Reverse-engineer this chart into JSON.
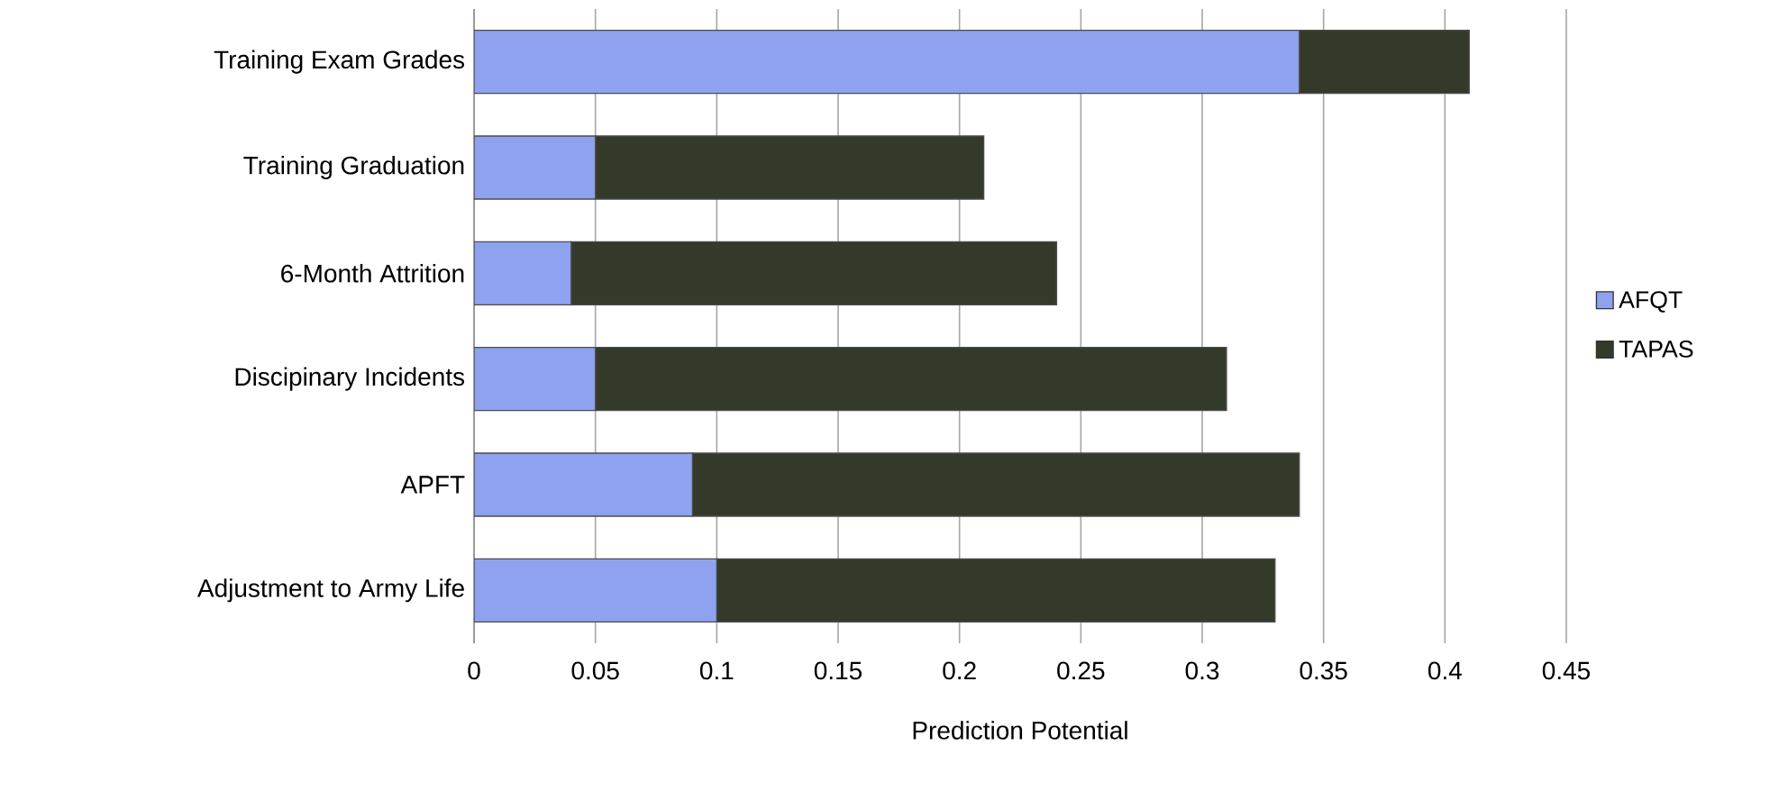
{
  "chart_data": {
    "type": "bar",
    "orientation": "horizontal",
    "stacked": true,
    "xlabel": "Prediction Potential",
    "categories": [
      "Training Exam Grades",
      "Training Graduation",
      "6-Month Attrition",
      "Discipinary Incidents",
      "APFT",
      "Adjustment to Army Life"
    ],
    "series": [
      {
        "name": "AFQT",
        "color": "#8fa2f0",
        "values": [
          0.34,
          0.05,
          0.04,
          0.05,
          0.09,
          0.1
        ]
      },
      {
        "name": "TAPAS",
        "color": "#333a2a",
        "values": [
          0.07,
          0.16,
          0.2,
          0.26,
          0.25,
          0.23
        ]
      }
    ],
    "xlim": [
      0,
      0.45
    ],
    "xticks": [
      0,
      0.05,
      0.1,
      0.15,
      0.2,
      0.25,
      0.3,
      0.35,
      0.4,
      0.45
    ],
    "grid": "x",
    "legend": "right"
  }
}
